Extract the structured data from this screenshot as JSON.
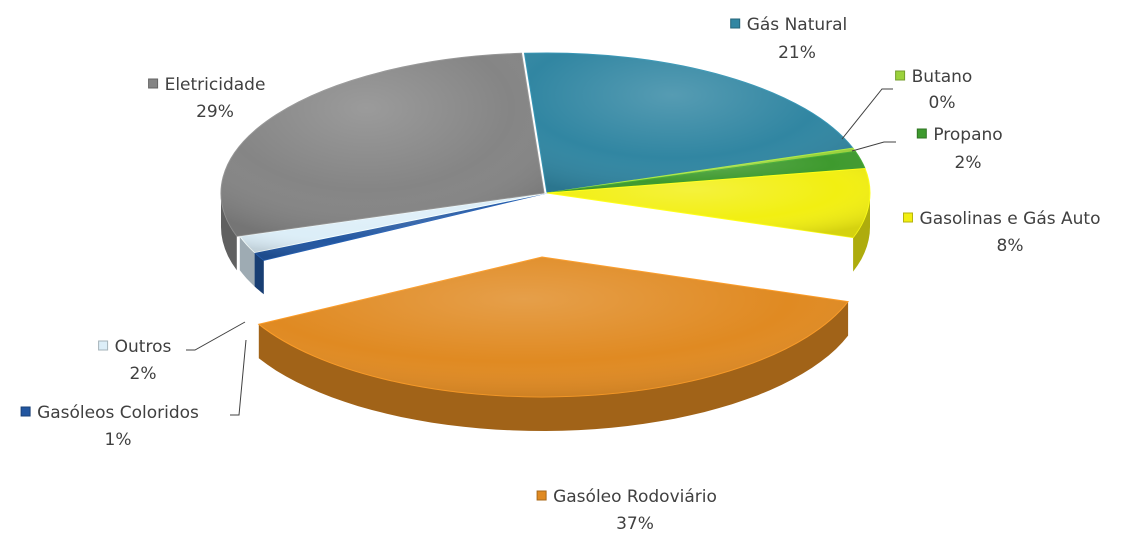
{
  "chart_data": {
    "type": "pie",
    "style": "3d-exploded",
    "series": [
      {
        "name": "",
        "slices": [
          {
            "label": "Gás Natural",
            "value": 21,
            "value_label": "21%",
            "color": "#3186A2"
          },
          {
            "label": "Butano",
            "value": 0.4,
            "value_label": "0%",
            "color": "#9BD23C"
          },
          {
            "label": "Propano",
            "value": 2,
            "value_label": "2%",
            "color": "#3E9A2E"
          },
          {
            "label": "Gasolinas e Gás Auto",
            "value": 8,
            "value_label": "8%",
            "color": "#F2EF12"
          },
          {
            "label": "Gasóleo Rodoviário",
            "value": 37,
            "value_label": "37%",
            "color": "#E08A22"
          },
          {
            "label": "Gasóleos Coloridos",
            "value": 1,
            "value_label": "1%",
            "color": "#2256A0"
          },
          {
            "label": "Outros",
            "value": 2,
            "value_label": "2%",
            "color": "#DCEEF8"
          },
          {
            "label": "Eletricidade",
            "value": 29,
            "value_label": "29%",
            "color": "#858585"
          }
        ]
      }
    ],
    "unit": "%",
    "legend": "none",
    "data_labels": "category name and percentage, outside"
  }
}
